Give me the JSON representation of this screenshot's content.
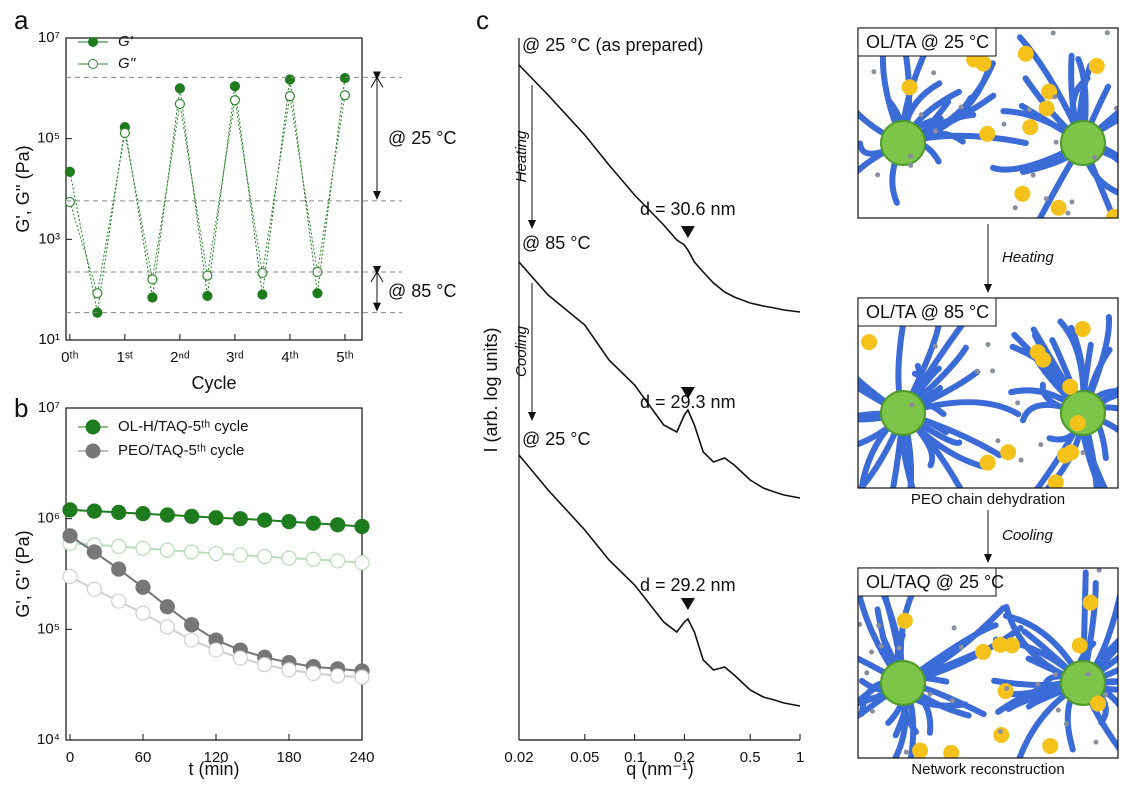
{
  "chart_data": [
    {
      "type": "line",
      "panel": "a",
      "x": [
        0,
        0.5,
        1,
        1.5,
        2,
        2.5,
        3,
        3.5,
        4,
        4.5,
        5
      ],
      "series": [
        {
          "name": "G'",
          "color": "#1e7b1e",
          "filled": true,
          "values": [
            22000,
            35,
            170000,
            70,
            1000000,
            75,
            1100000,
            80,
            1500000,
            85,
            1600000
          ]
        },
        {
          "name": "G''",
          "color": "#2e8b2e",
          "filled": false,
          "values": [
            5500,
            85,
            130000,
            160,
            490000,
            190,
            580000,
            215,
            700000,
            225,
            730000
          ]
        }
      ],
      "xlim": [
        -0.07,
        5.31
      ],
      "ylim": [
        10,
        10000000
      ],
      "ylog": true,
      "xticks": [
        {
          "value": 0,
          "label": "0ᵗʰ"
        },
        {
          "value": 1,
          "label": "1ˢᵗ"
        },
        {
          "value": 2,
          "label": "2ⁿᵈ"
        },
        {
          "value": 3,
          "label": "3ʳᵈ"
        },
        {
          "value": 4,
          "label": "4ᵗʰ"
        },
        {
          "value": 5,
          "label": "5ᵗʰ"
        }
      ],
      "yticks": [
        {
          "value": 10,
          "label": "10¹"
        },
        {
          "value": 1000,
          "label": "10³"
        },
        {
          "value": 100000,
          "label": "10⁵"
        },
        {
          "value": 10000000,
          "label": "10⁷"
        }
      ],
      "xlabel": "Cycle",
      "ylabel": "G', G'' (Pa)",
      "reference_lines": [
        1650000,
        5800,
        225,
        35
      ],
      "annotations": [
        "@ 25 °C",
        "@ 85 °C"
      ]
    },
    {
      "type": "line",
      "panel": "b",
      "x": [
        0,
        20,
        40,
        60,
        80,
        100,
        120,
        140,
        160,
        180,
        200,
        220,
        240
      ],
      "series": [
        {
          "name": "OL-H/TAQ-5ᵗʰ cycle",
          "color": "#1e7b1e",
          "filled": true,
          "values": [
            1200000,
            1170000,
            1140000,
            1110000,
            1080000,
            1050000,
            1020000,
            1000000,
            970000,
            940000,
            910000,
            880000,
            850000
          ]
        },
        {
          "name": null,
          "color": "#b9dcb9",
          "filled": false,
          "values": [
            600000,
            580000,
            560000,
            540000,
            520000,
            500000,
            485000,
            470000,
            455000,
            440000,
            430000,
            415000,
            400000
          ]
        },
        {
          "name": "PEO/TAQ-5ᵗʰ cycle",
          "color": "#777777",
          "filled": true,
          "values": [
            700000,
            500000,
            350000,
            240000,
            160000,
            110000,
            80000,
            65000,
            56000,
            50000,
            46000,
            44000,
            42000
          ]
        },
        {
          "name": null,
          "color": "#cfcfcf",
          "filled": false,
          "values": [
            300000,
            230000,
            180000,
            140000,
            105000,
            80000,
            65000,
            55000,
            48000,
            43000,
            40000,
            38000,
            37000
          ]
        }
      ],
      "xlim": [
        -3.3,
        240
      ],
      "ylim": [
        10000,
        10000000
      ],
      "ylog": true,
      "xticks": [
        0,
        60,
        120,
        180,
        240
      ],
      "yticks": [
        {
          "value": 10000,
          "label": "10⁴"
        },
        {
          "value": 100000,
          "label": "10⁵"
        },
        {
          "value": 1000000,
          "label": "10⁶"
        },
        {
          "value": 10000000,
          "label": "10⁷"
        }
      ],
      "xlabel": "t (min)",
      "ylabel": "G', G'' (Pa)"
    },
    {
      "type": "line",
      "panel": "c",
      "x": [
        0.02,
        0.03,
        0.05,
        0.07,
        0.1,
        0.15,
        0.18,
        0.2,
        0.21,
        0.23,
        0.26,
        0.3,
        0.35,
        0.4,
        0.5,
        0.6,
        0.7,
        0.8,
        1
      ],
      "series": [
        {
          "name": null,
          "color": "#111111",
          "values": [
            6.75,
            6.45,
            6.05,
            5.75,
            5.45,
            5.15,
            5.0,
            4.95,
            4.9,
            4.78,
            4.68,
            4.57,
            4.48,
            4.43,
            4.37,
            4.34,
            4.32,
            4.3,
            4.28
          ]
        },
        {
          "name": null,
          "color": "#111111",
          "values": [
            4.78,
            4.45,
            4.15,
            3.8,
            3.55,
            3.15,
            3.08,
            3.25,
            3.3,
            3.15,
            2.88,
            2.78,
            2.82,
            2.75,
            2.6,
            2.52,
            2.48,
            2.45,
            2.42
          ]
        },
        {
          "name": null,
          "color": "#111111",
          "values": [
            2.85,
            2.5,
            2.1,
            1.8,
            1.55,
            1.18,
            1.08,
            1.18,
            1.21,
            1.08,
            0.8,
            0.7,
            0.73,
            0.65,
            0.5,
            0.43,
            0.4,
            0.37,
            0.34
          ]
        }
      ],
      "xlim": [
        0.02,
        1
      ],
      "xlog": true,
      "ylim": [
        0,
        7.02
      ],
      "xticks": [
        0.02,
        0.05,
        0.1,
        0.2,
        0.5,
        1
      ],
      "xlabel": "q (nm⁻¹)",
      "ylabel": "I (arb. log units)",
      "annotations": [
        "@ 25 °C (as prepared)",
        "@ 85 °C",
        "@ 25 °C"
      ],
      "arrow_labels": [
        "Heating",
        "Cooling"
      ],
      "peak_labels": [
        "d = 30.6 nm",
        "d = 29.3 nm",
        "d = 29.2 nm"
      ],
      "peak_markers_q": [
        0.21,
        0.21,
        0.21
      ]
    }
  ],
  "diagram": {
    "panels": [
      {
        "label": "OL/TA @ 25 °C"
      },
      {
        "label": "OL/TA @ 85 °C",
        "caption": "PEO chain dehydration"
      },
      {
        "label": "OL/TAQ @ 25 °C",
        "caption": "Network reconstruction"
      }
    ],
    "arrows": [
      "Heating",
      "Cooling"
    ]
  }
}
